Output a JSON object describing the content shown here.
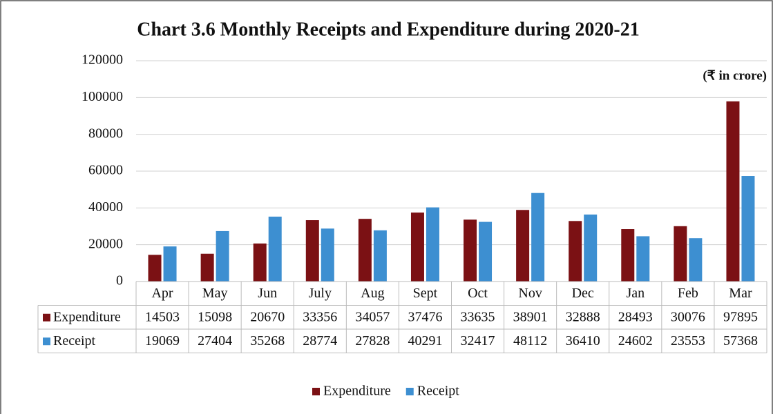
{
  "chart_data": {
    "type": "bar",
    "title": "Chart 3.6 Monthly Receipts and Expenditure during 2020-21",
    "note": "(₹  in crore)",
    "categories": [
      "Apr",
      "May",
      "Jun",
      "July",
      "Aug",
      "Sept",
      "Oct",
      "Nov",
      "Dec",
      "Jan",
      "Feb",
      "Mar"
    ],
    "series": [
      {
        "name": "Expenditure",
        "color": "#7b1114",
        "values": [
          14503,
          15098,
          20670,
          33356,
          34057,
          37476,
          33635,
          38901,
          32888,
          28493,
          30076,
          97895
        ]
      },
      {
        "name": "Receipt",
        "color": "#3d8fd1",
        "values": [
          19069,
          27404,
          35268,
          28774,
          27828,
          40291,
          32417,
          48112,
          36410,
          24602,
          23553,
          57368
        ]
      }
    ],
    "ylim": [
      0,
      120000
    ],
    "yticks": [
      0,
      20000,
      40000,
      60000,
      80000,
      100000,
      120000
    ],
    "grid": true,
    "legend": "bottom",
    "data_table": true
  }
}
